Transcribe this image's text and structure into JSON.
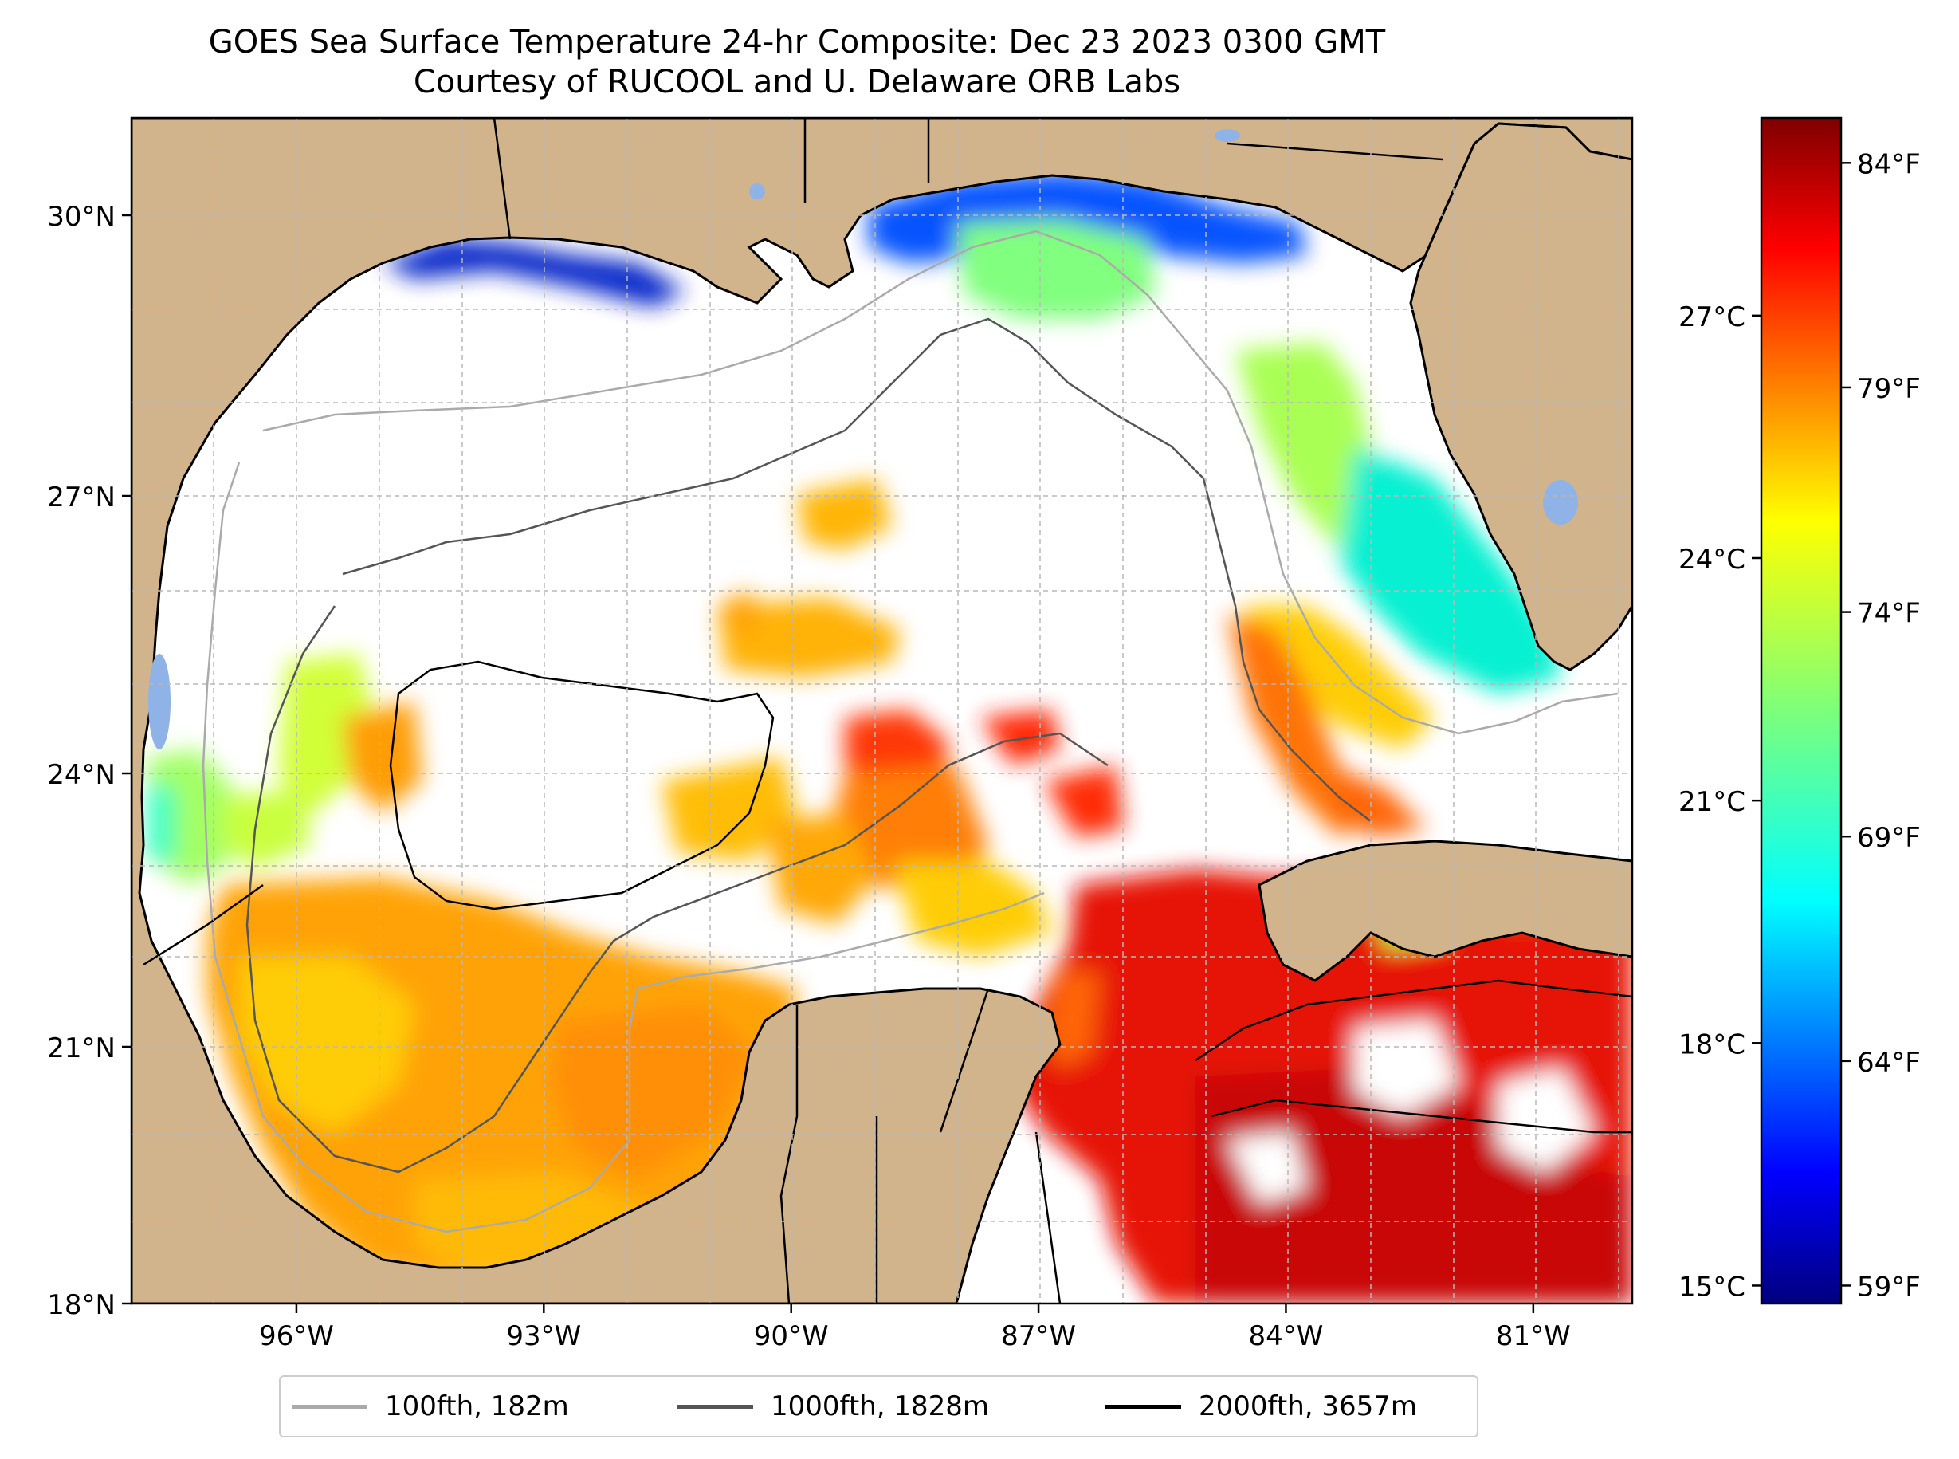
{
  "title": {
    "line1": "GOES Sea Surface Temperature 24-hr Composite: Dec 23 2023 0300 GMT",
    "line2": "Courtesy of RUCOOL and U. Delaware ORB Labs"
  },
  "map": {
    "lon_range": [
      -98.0,
      -79.8
    ],
    "lat_range": [
      18.0,
      31.0
    ],
    "land_color": "#d2b48c",
    "lat_ticks": [
      {
        "value": 30,
        "label": "30°N"
      },
      {
        "value": 27,
        "label": "27°N"
      },
      {
        "value": 24,
        "label": "24°N"
      },
      {
        "value": 21,
        "label": "21°N"
      },
      {
        "value": 18,
        "label": "18°N"
      }
    ],
    "lon_ticks": [
      {
        "value": -96,
        "label": "96°W"
      },
      {
        "value": -93,
        "label": "93°W"
      },
      {
        "value": -90,
        "label": "90°W"
      },
      {
        "value": -87,
        "label": "87°W"
      },
      {
        "value": -84,
        "label": "84°W"
      },
      {
        "value": -81,
        "label": "81°W"
      }
    ],
    "grid": true
  },
  "colorbar": {
    "colormap": "jet",
    "celsius_ticks": [
      {
        "value": 27,
        "label": "27°C"
      },
      {
        "value": 24,
        "label": "24°C"
      },
      {
        "value": 21,
        "label": "21°C"
      },
      {
        "value": 18,
        "label": "18°C"
      },
      {
        "value": 15,
        "label": "15°C"
      }
    ],
    "fahrenheit_ticks": [
      {
        "value": 84,
        "label": "84°F"
      },
      {
        "value": 79,
        "label": "79°F"
      },
      {
        "value": 74,
        "label": "74°F"
      },
      {
        "value": 69,
        "label": "69°F"
      },
      {
        "value": 64,
        "label": "64°F"
      },
      {
        "value": 59,
        "label": "59°F"
      }
    ],
    "range_f": [
      58.6,
      85.0
    ]
  },
  "legend": [
    {
      "label": "100fth, 182m",
      "color": "#aaaaaa"
    },
    {
      "label": "1000fth, 1828m",
      "color": "#555555"
    },
    {
      "label": "2000fth, 3657m",
      "color": "#000000"
    }
  ]
}
